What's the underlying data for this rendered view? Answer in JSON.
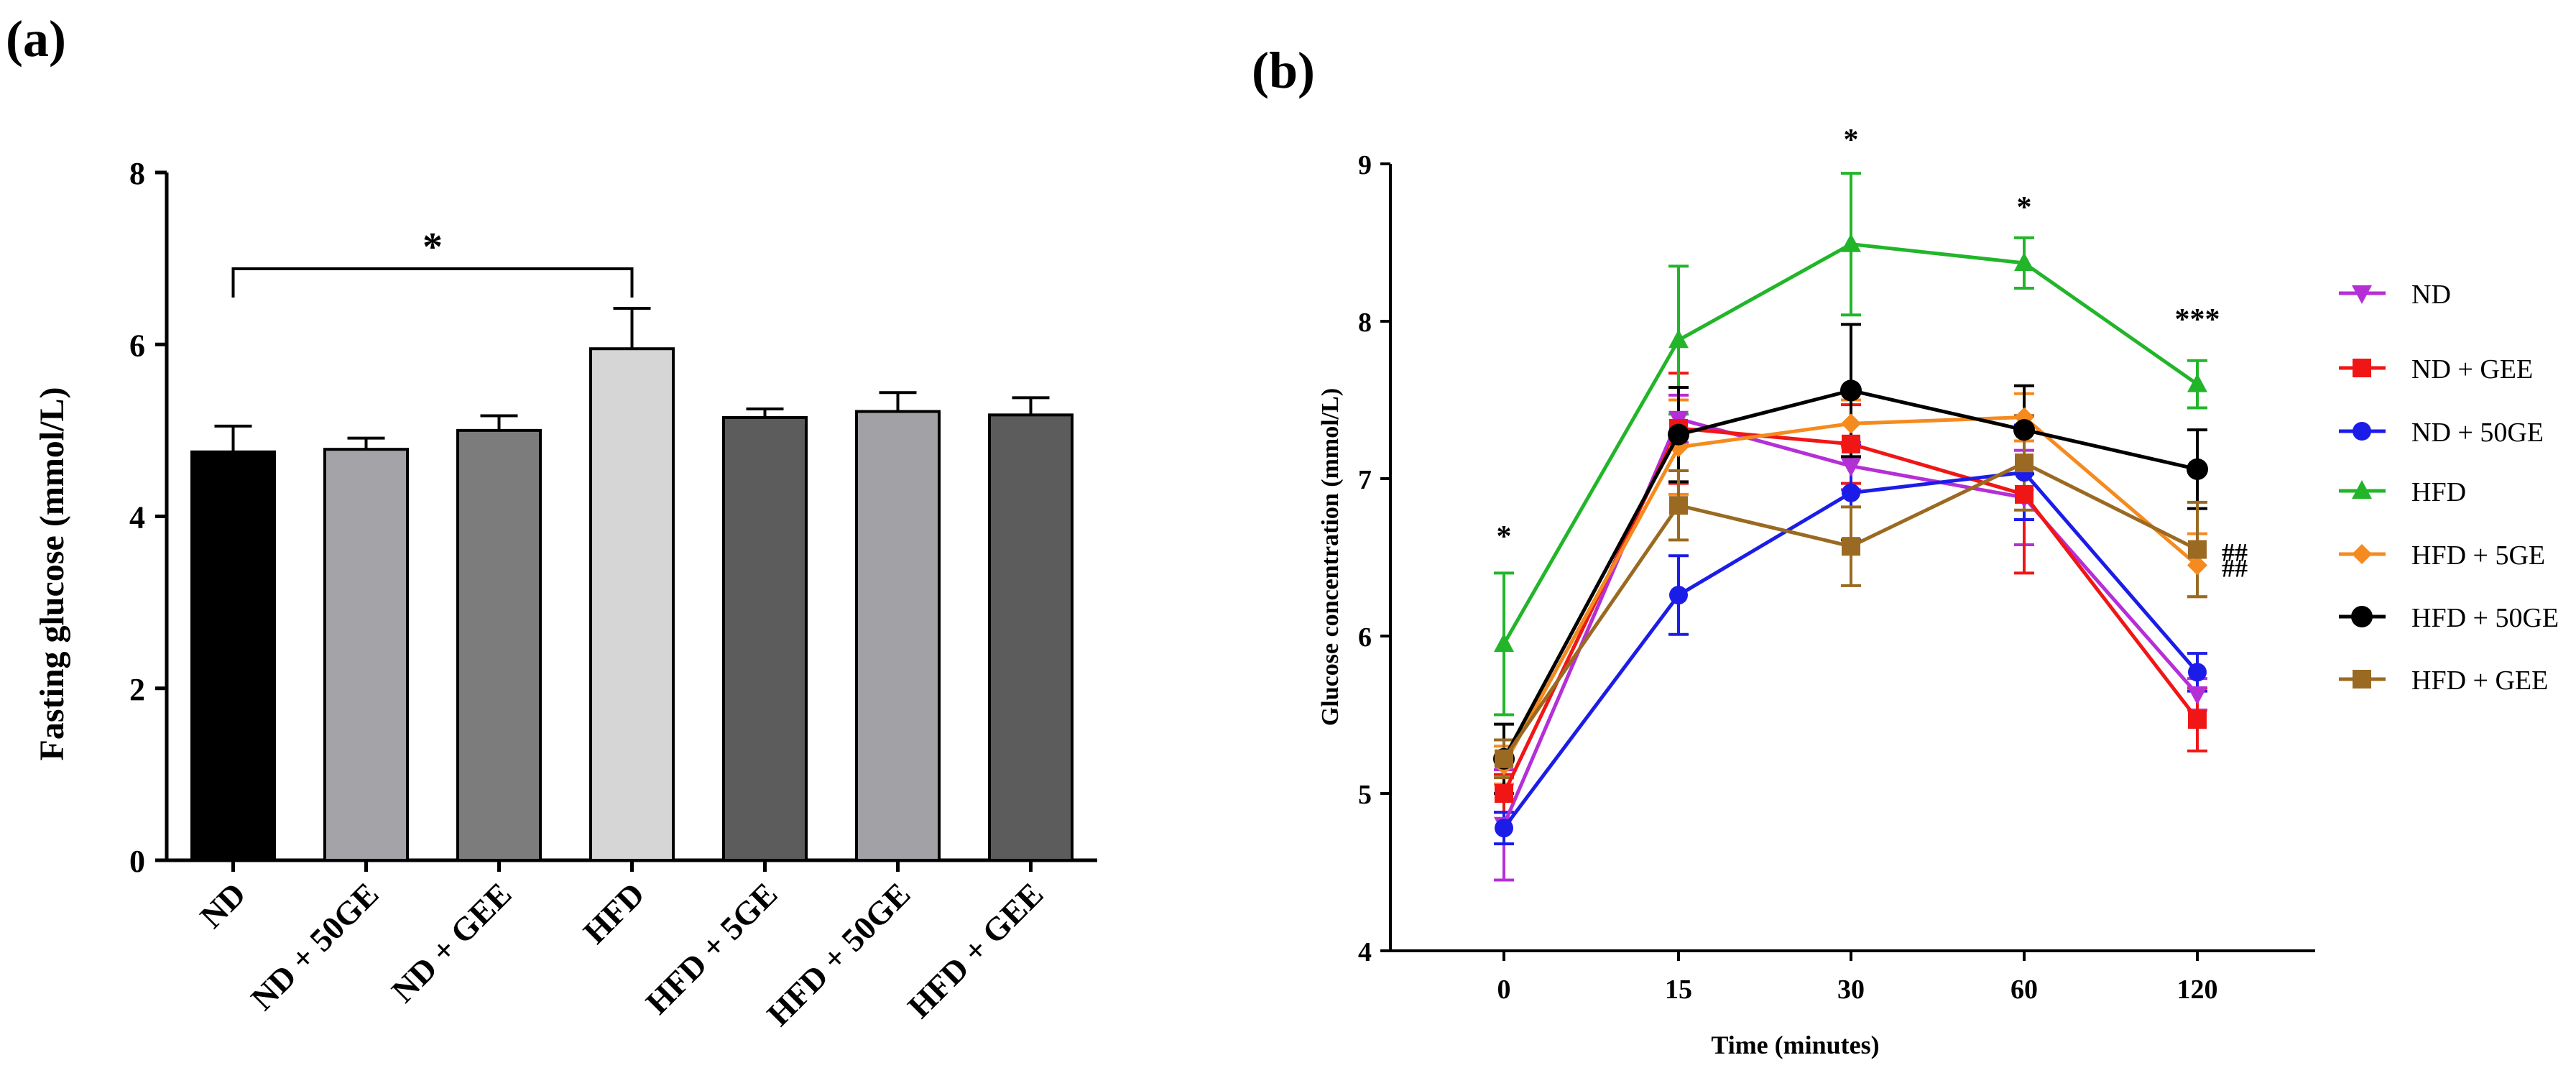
{
  "panel_a_label": "(a)",
  "panel_b_label": "(b)",
  "chart_data": [
    {
      "type": "bar",
      "panel": "a",
      "title": "",
      "xlabel": "",
      "ylabel": "Fasting glucose (mmol/L)",
      "ylim": [
        0,
        8
      ],
      "yticks": [
        0,
        2,
        4,
        6,
        8
      ],
      "categories": [
        "ND",
        "ND + 50GE",
        "ND + GEE",
        "HFD",
        "HFD + 5GE",
        "HFD + 50GE",
        "HFD + GEE"
      ],
      "values": [
        4.75,
        4.78,
        5.0,
        5.95,
        5.15,
        5.22,
        5.18
      ],
      "errors": [
        0.3,
        0.13,
        0.17,
        0.47,
        0.1,
        0.22,
        0.2
      ],
      "colors": [
        "#000000",
        "#a4a4a8",
        "#7c7c7c",
        "#d6d6d6",
        "#5c5c5c",
        "#a2a2a6",
        "#5c5c5c"
      ],
      "significance": {
        "from": "ND",
        "to": "HFD",
        "label": "*"
      }
    },
    {
      "type": "line",
      "panel": "b",
      "title": "",
      "xlabel": "Time (minutes)",
      "ylabel": "Glucose concentration (mmol/L)",
      "x": [
        "0",
        "15",
        "30",
        "60",
        "120"
      ],
      "ylim": [
        4,
        9
      ],
      "yticks": [
        4,
        5,
        6,
        7,
        8,
        9
      ],
      "legend_position": "right",
      "series": [
        {
          "name": "ND",
          "color": "#b52fd6",
          "marker": "triangle-down",
          "values": [
            4.8,
            7.38,
            7.08,
            6.88,
            5.63
          ],
          "errors": [
            0.35,
            0.15,
            0.15,
            0.3,
            0.1
          ]
        },
        {
          "name": "ND + GEE",
          "color": "#f01616",
          "marker": "square",
          "values": [
            5.0,
            7.32,
            7.22,
            6.9,
            5.47
          ],
          "errors": [
            0.12,
            0.35,
            0.25,
            0.5,
            0.2
          ]
        },
        {
          "name": "ND + 50GE",
          "color": "#1c1ce8",
          "marker": "circle",
          "values": [
            4.78,
            6.26,
            6.91,
            7.04,
            5.77
          ],
          "errors": [
            0.1,
            0.25,
            0.3,
            0.3,
            0.12
          ]
        },
        {
          "name": "HFD",
          "color": "#22b52a",
          "marker": "triangle-up",
          "values": [
            5.95,
            7.88,
            8.49,
            8.37,
            7.6
          ],
          "errors": [
            0.45,
            0.47,
            0.45,
            0.16,
            0.15
          ]
        },
        {
          "name": "HFD + 5GE",
          "color": "#f58a1e",
          "marker": "diamond",
          "values": [
            5.18,
            7.2,
            7.35,
            7.39,
            6.45
          ],
          "errors": [
            0.12,
            0.3,
            0.15,
            0.15,
            0.2
          ]
        },
        {
          "name": "HFD + 50GE",
          "color": "#000000",
          "marker": "circle-large",
          "values": [
            5.22,
            7.28,
            7.56,
            7.31,
            7.06
          ],
          "errors": [
            0.22,
            0.3,
            0.42,
            0.28,
            0.25
          ]
        },
        {
          "name": "HFD + GEE",
          "color": "#9a6a22",
          "marker": "square",
          "values": [
            5.22,
            6.83,
            6.57,
            7.1,
            6.55
          ],
          "errors": [
            0.12,
            0.22,
            0.25,
            0.3,
            0.3
          ]
        }
      ],
      "annotations": [
        {
          "x": "0",
          "text": "*"
        },
        {
          "x": "30",
          "text": "*"
        },
        {
          "x": "60",
          "text": "*"
        },
        {
          "x": "120",
          "text": "***"
        },
        {
          "x": "120",
          "text": "##",
          "series": "HFD + GEE"
        },
        {
          "x": "120",
          "text": "##",
          "series": "HFD + 5GE"
        }
      ]
    }
  ]
}
